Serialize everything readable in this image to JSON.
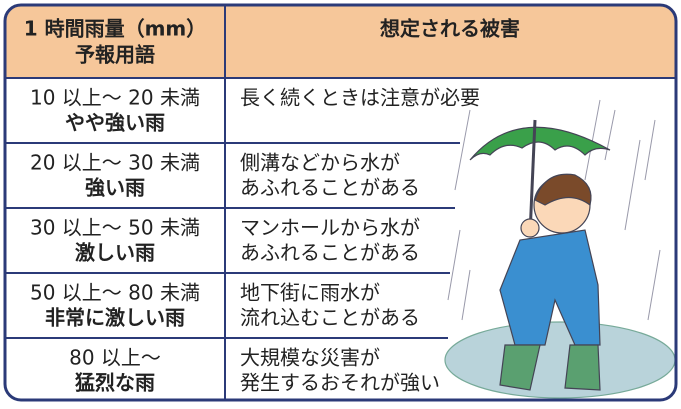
{
  "table": {
    "header": {
      "col1": [
        "1 時間雨量（mm）",
        "予報用語"
      ],
      "col2": "想定される被害"
    },
    "rows": [
      {
        "range": "10 以上～ 20 未満",
        "term": "やや強い雨",
        "damage": [
          "長く続くときは注意が必要"
        ]
      },
      {
        "range": "20 以上～ 30 未満",
        "term": "強い雨",
        "damage": [
          "側溝などから水が",
          "あふれることがある"
        ]
      },
      {
        "range": "30 以上～ 50 未満",
        "term": "激しい雨",
        "damage": [
          "マンホールから水が",
          "あふれることがある"
        ]
      },
      {
        "range": "50 以上～ 80 未満",
        "term": "非常に激しい雨",
        "damage": [
          "地下街に雨水が",
          "流れ込むことがある"
        ]
      },
      {
        "range": "80 以上～",
        "term": "猛烈な雨",
        "damage": [
          "大規模な災害が",
          "発生するおそれが強い"
        ]
      }
    ]
  }
}
